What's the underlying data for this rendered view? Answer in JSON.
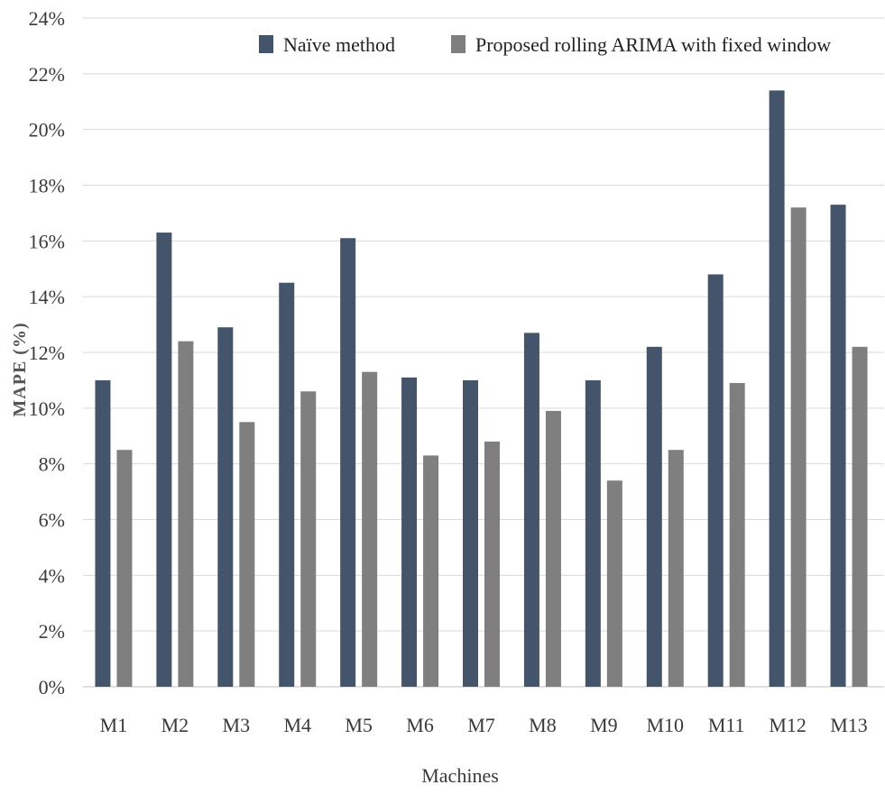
{
  "chart_data": {
    "type": "bar",
    "title": "",
    "xlabel": "Machines",
    "ylabel": "MAPE (%)",
    "ylim": [
      0,
      24
    ],
    "yticks": [
      "0%",
      "2%",
      "4%",
      "6%",
      "8%",
      "10%",
      "12%",
      "14%",
      "16%",
      "18%",
      "20%",
      "22%",
      "24%"
    ],
    "grid": true,
    "legend_position": "top",
    "categories": [
      "M1",
      "M2",
      "M3",
      "M4",
      "M5",
      "M6",
      "M7",
      "M8",
      "M9",
      "M10",
      "M11",
      "M12",
      "M13"
    ],
    "series": [
      {
        "name": "Naïve method",
        "color": "#44546a",
        "values": [
          11.0,
          16.3,
          12.9,
          14.5,
          16.1,
          11.1,
          11.0,
          12.7,
          11.0,
          12.2,
          14.8,
          21.4,
          17.3
        ]
      },
      {
        "name": "Proposed rolling ARIMA with fixed window",
        "color": "#7f7f7f",
        "values": [
          8.5,
          12.4,
          9.5,
          10.6,
          11.3,
          8.3,
          8.8,
          9.9,
          7.4,
          8.5,
          10.9,
          17.2,
          12.2
        ]
      }
    ]
  }
}
